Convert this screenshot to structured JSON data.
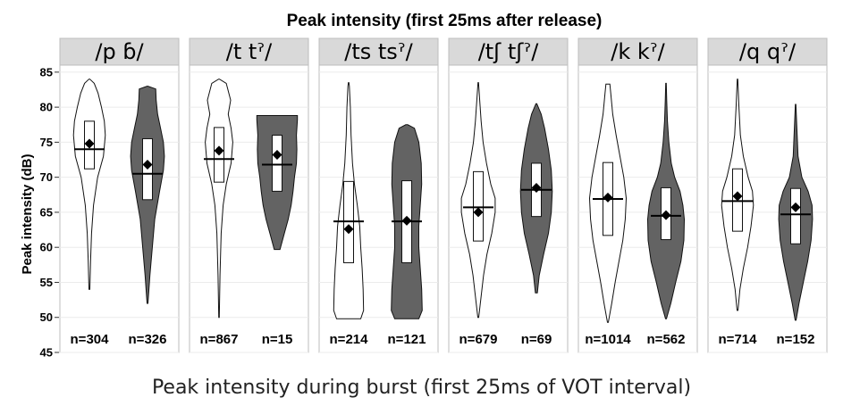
{
  "caption": "Peak intensity during burst (first 25ms of VOT interval)",
  "chart_data": {
    "type": "violin",
    "title": "Peak intensity (first 25ms after release)",
    "ylabel": "Peak intensity (dB)",
    "xlabel": "",
    "ylim": [
      45,
      86
    ],
    "yticks": [
      45,
      50,
      55,
      60,
      65,
      70,
      75,
      80,
      85
    ],
    "grid": true,
    "colors": {
      "white": "#ffffff",
      "dark": "#636363",
      "strip": "#d9d9d9",
      "grid": "#ebebeb"
    },
    "panels": [
      {
        "label": "/p ɓ/",
        "violins": [
          {
            "fill": "white",
            "n_label": "n=304",
            "min": 54,
            "max": 84,
            "q1": 71.2,
            "q3": 78,
            "median": 74,
            "mean": 74.8,
            "shape": [
              [
                54,
                0.02
              ],
              [
                58,
                0.05
              ],
              [
                62,
                0.09
              ],
              [
                66,
                0.17
              ],
              [
                70,
                0.34
              ],
              [
                73,
                0.58
              ],
              [
                76,
                0.66
              ],
              [
                78,
                0.62
              ],
              [
                80,
                0.5
              ],
              [
                82,
                0.36
              ],
              [
                83.4,
                0.2
              ],
              [
                84,
                0.02
              ]
            ]
          },
          {
            "fill": "dark",
            "n_label": "n=326",
            "min": 52,
            "max": 83,
            "q1": 66.8,
            "q3": 75.5,
            "median": 70.5,
            "mean": 71.8,
            "shape": [
              [
                52,
                0.02
              ],
              [
                56,
                0.1
              ],
              [
                60,
                0.2
              ],
              [
                64,
                0.3
              ],
              [
                68,
                0.5
              ],
              [
                71,
                0.66
              ],
              [
                73,
                0.7
              ],
              [
                75,
                0.66
              ],
              [
                77,
                0.54
              ],
              [
                79,
                0.42
              ],
              [
                81,
                0.36
              ],
              [
                82.6,
                0.34
              ],
              [
                83,
                0.02
              ]
            ]
          }
        ]
      },
      {
        "label": "/t tˀ/",
        "violins": [
          {
            "fill": "white",
            "n_label": "n=867",
            "min": 50,
            "max": 84,
            "q1": 69.3,
            "q3": 77.1,
            "median": 72.6,
            "mean": 73.8,
            "shape": [
              [
                50,
                0.01
              ],
              [
                56,
                0.04
              ],
              [
                62,
                0.09
              ],
              [
                66,
                0.17
              ],
              [
                69,
                0.3
              ],
              [
                72,
                0.5
              ],
              [
                75,
                0.57
              ],
              [
                77,
                0.5
              ],
              [
                79,
                0.38
              ],
              [
                81,
                0.48
              ],
              [
                83.4,
                0.3
              ],
              [
                84,
                0.02
              ]
            ]
          },
          {
            "fill": "dark",
            "n_label": "n=15",
            "min": 59.7,
            "max": 78.8,
            "q1": 68,
            "q3": 76,
            "median": 71.8,
            "mean": 73.2,
            "shape": [
              [
                59.7,
                0.12
              ],
              [
                62,
                0.3
              ],
              [
                64,
                0.46
              ],
              [
                66,
                0.58
              ],
              [
                68,
                0.66
              ],
              [
                70,
                0.72
              ],
              [
                72,
                0.8
              ],
              [
                74,
                0.82
              ],
              [
                76,
                0.8
              ],
              [
                78.2,
                0.84
              ],
              [
                78.8,
                0.84
              ]
            ]
          }
        ]
      },
      {
        "label": "/ts tsˀ/",
        "violins": [
          {
            "fill": "white",
            "n_label": "n=214",
            "min": 49.8,
            "max": 83.5,
            "q1": 57.8,
            "q3": 69.4,
            "median": 63.7,
            "mean": 62.6,
            "shape": [
              [
                49.8,
                0.5
              ],
              [
                51,
                0.62
              ],
              [
                54,
                0.6
              ],
              [
                57,
                0.56
              ],
              [
                60,
                0.5
              ],
              [
                63,
                0.46
              ],
              [
                66,
                0.36
              ],
              [
                69,
                0.24
              ],
              [
                72,
                0.16
              ],
              [
                76,
                0.1
              ],
              [
                80,
                0.07
              ],
              [
                83,
                0.03
              ],
              [
                83.5,
                0.01
              ]
            ]
          },
          {
            "fill": "dark",
            "n_label": "n=121",
            "min": 49.8,
            "max": 77.5,
            "q1": 57.8,
            "q3": 69.5,
            "median": 63.7,
            "mean": 63.8,
            "shape": [
              [
                49.8,
                0.5
              ],
              [
                51,
                0.64
              ],
              [
                54,
                0.62
              ],
              [
                57,
                0.56
              ],
              [
                60,
                0.5
              ],
              [
                63,
                0.5
              ],
              [
                66,
                0.56
              ],
              [
                69,
                0.62
              ],
              [
                72,
                0.6
              ],
              [
                75,
                0.5
              ],
              [
                77,
                0.32
              ],
              [
                77.5,
                0.04
              ]
            ]
          }
        ]
      },
      {
        "label": "/tʃ tʃˀ/",
        "violins": [
          {
            "fill": "white",
            "n_label": "n=679",
            "min": 50,
            "max": 83.5,
            "q1": 60.9,
            "q3": 70.8,
            "median": 65.7,
            "mean": 65,
            "shape": [
              [
                50,
                0.02
              ],
              [
                53,
                0.12
              ],
              [
                56,
                0.22
              ],
              [
                59,
                0.36
              ],
              [
                62,
                0.56
              ],
              [
                65,
                0.7
              ],
              [
                67,
                0.7
              ],
              [
                69,
                0.52
              ],
              [
                72,
                0.34
              ],
              [
                75,
                0.2
              ],
              [
                78,
                0.12
              ],
              [
                81,
                0.06
              ],
              [
                83.5,
                0.01
              ]
            ]
          },
          {
            "fill": "dark",
            "n_label": "n=69",
            "min": 53.5,
            "max": 80.5,
            "q1": 64.4,
            "q3": 72,
            "median": 68.2,
            "mean": 68.5,
            "shape": [
              [
                53.5,
                0.04
              ],
              [
                56,
                0.12
              ],
              [
                59,
                0.3
              ],
              [
                62,
                0.5
              ],
              [
                65,
                0.62
              ],
              [
                68,
                0.66
              ],
              [
                71,
                0.62
              ],
              [
                74,
                0.5
              ],
              [
                77,
                0.34
              ],
              [
                79,
                0.2
              ],
              [
                80.5,
                0.02
              ]
            ]
          }
        ]
      },
      {
        "label": "/k kˀ/",
        "violins": [
          {
            "fill": "white",
            "n_label": "n=1014",
            "min": 49.3,
            "max": 83.3,
            "q1": 61.7,
            "q3": 72.1,
            "median": 66.9,
            "mean": 67.1,
            "shape": [
              [
                49.3,
                0.02
              ],
              [
                52,
                0.16
              ],
              [
                55,
                0.3
              ],
              [
                58,
                0.46
              ],
              [
                61,
                0.62
              ],
              [
                64,
                0.72
              ],
              [
                67,
                0.76
              ],
              [
                70,
                0.66
              ],
              [
                73,
                0.5
              ],
              [
                76,
                0.34
              ],
              [
                79,
                0.2
              ],
              [
                82,
                0.12
              ],
              [
                83.3,
                0.08
              ]
            ]
          },
          {
            "fill": "dark",
            "n_label": "n=562",
            "min": 49.8,
            "max": 83.4,
            "q1": 61.1,
            "q3": 68.5,
            "median": 64.5,
            "mean": 64.6,
            "shape": [
              [
                49.8,
                0.02
              ],
              [
                52,
                0.2
              ],
              [
                55,
                0.4
              ],
              [
                58,
                0.62
              ],
              [
                61,
                0.74
              ],
              [
                64,
                0.76
              ],
              [
                66,
                0.7
              ],
              [
                68,
                0.58
              ],
              [
                70,
                0.36
              ],
              [
                72,
                0.22
              ],
              [
                75,
                0.12
              ],
              [
                78,
                0.06
              ],
              [
                81,
                0.03
              ],
              [
                83.4,
                0.01
              ]
            ]
          }
        ]
      },
      {
        "label": "/q qˀ/",
        "violins": [
          {
            "fill": "white",
            "n_label": "n=714",
            "min": 51,
            "max": 84,
            "q1": 62.3,
            "q3": 71.2,
            "median": 66.6,
            "mean": 67.3,
            "shape": [
              [
                51,
                0.02
              ],
              [
                54,
                0.1
              ],
              [
                57,
                0.24
              ],
              [
                60,
                0.42
              ],
              [
                63,
                0.56
              ],
              [
                66,
                0.66
              ],
              [
                68,
                0.62
              ],
              [
                70,
                0.44
              ],
              [
                73,
                0.24
              ],
              [
                76,
                0.12
              ],
              [
                80,
                0.06
              ],
              [
                84,
                0.01
              ]
            ]
          },
          {
            "fill": "dark",
            "n_label": "n=152",
            "min": 49.6,
            "max": 80.4,
            "q1": 60.5,
            "q3": 68.4,
            "median": 64.7,
            "mean": 65.7,
            "shape": [
              [
                49.6,
                0.02
              ],
              [
                52,
                0.14
              ],
              [
                55,
                0.32
              ],
              [
                58,
                0.5
              ],
              [
                61,
                0.64
              ],
              [
                64,
                0.7
              ],
              [
                66,
                0.68
              ],
              [
                68,
                0.52
              ],
              [
                70,
                0.26
              ],
              [
                73,
                0.1
              ],
              [
                77,
                0.05
              ],
              [
                80.4,
                0.01
              ]
            ]
          }
        ]
      }
    ]
  }
}
